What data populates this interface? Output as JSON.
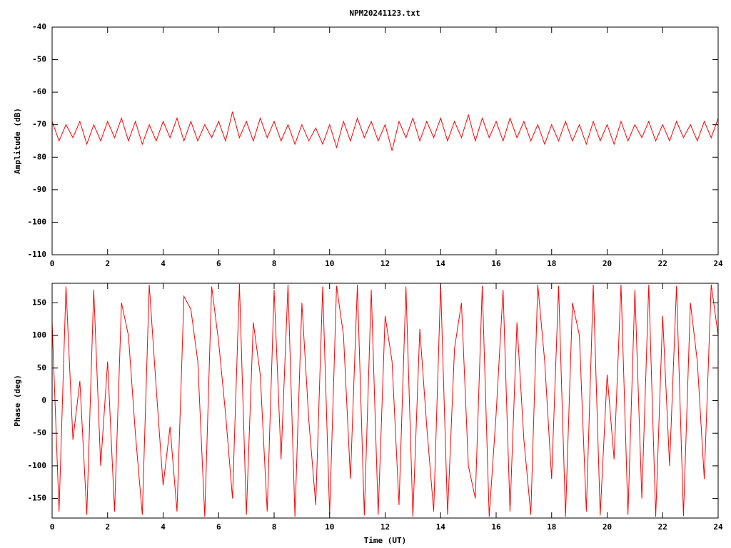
{
  "chart_data": [
    {
      "type": "line",
      "title": "NPM20241123.txt",
      "ylabel": "Amplitude (dB)",
      "x": [
        0,
        0.25,
        0.5,
        0.75,
        1,
        1.25,
        1.5,
        1.75,
        2,
        2.25,
        2.5,
        2.75,
        3,
        3.25,
        3.5,
        3.75,
        4,
        4.25,
        4.5,
        4.75,
        5,
        5.25,
        5.5,
        5.75,
        6,
        6.25,
        6.5,
        6.75,
        7,
        7.25,
        7.5,
        7.75,
        8,
        8.25,
        8.5,
        8.75,
        9,
        9.25,
        9.5,
        9.75,
        10,
        10.25,
        10.5,
        10.75,
        11,
        11.25,
        11.5,
        11.75,
        12,
        12.25,
        12.5,
        12.75,
        13,
        13.25,
        13.5,
        13.75,
        14,
        14.25,
        14.5,
        14.75,
        15,
        15.25,
        15.5,
        15.75,
        16,
        16.25,
        16.5,
        16.75,
        17,
        17.25,
        17.5,
        17.75,
        18,
        18.25,
        18.5,
        18.75,
        19,
        19.25,
        19.5,
        19.75,
        20,
        20.25,
        20.5,
        20.75,
        21,
        21.25,
        21.5,
        21.75,
        22,
        22.25,
        22.5,
        22.75,
        23,
        23.25,
        23.5,
        23.75,
        24
      ],
      "series": [
        {
          "color": "#ff0000",
          "values": [
            -69,
            -75,
            -70,
            -74,
            -69,
            -76,
            -70,
            -75,
            -69,
            -74,
            -68,
            -75,
            -69,
            -76,
            -70,
            -75,
            -69,
            -74,
            -68,
            -75,
            -69,
            -75,
            -70,
            -74,
            -69,
            -75,
            -66,
            -74,
            -69,
            -75,
            -68,
            -74,
            -69,
            -75,
            -70,
            -76,
            -70,
            -75,
            -71,
            -76,
            -70,
            -77,
            -69,
            -75,
            -68,
            -74,
            -69,
            -75,
            -70,
            -78,
            -69,
            -74,
            -68,
            -75,
            -69,
            -74,
            -68,
            -75,
            -69,
            -74,
            -67,
            -75,
            -68,
            -74,
            -69,
            -75,
            -68,
            -74,
            -69,
            -75,
            -70,
            -76,
            -70,
            -75,
            -69,
            -75,
            -70,
            -76,
            -69,
            -75,
            -70,
            -76,
            -69,
            -75,
            -70,
            -74,
            -69,
            -75,
            -70,
            -75,
            -69,
            -74,
            -70,
            -75,
            -69,
            -74,
            -68
          ]
        }
      ],
      "xlim": [
        0,
        24
      ],
      "xticks": [
        0,
        2,
        4,
        6,
        8,
        10,
        12,
        14,
        16,
        18,
        20,
        22,
        24
      ],
      "ylim": [
        -110,
        -40
      ],
      "yticks": [
        -110,
        -100,
        -90,
        -80,
        -70,
        -60,
        -50,
        -40
      ]
    },
    {
      "type": "line",
      "ylabel": "Phase (deg)",
      "xlabel": "Time (UT)",
      "x": [
        0,
        0.25,
        0.5,
        0.75,
        1,
        1.25,
        1.5,
        1.75,
        2,
        2.25,
        2.5,
        2.75,
        3,
        3.25,
        3.5,
        3.75,
        4,
        4.25,
        4.5,
        4.75,
        5,
        5.25,
        5.5,
        5.75,
        6,
        6.25,
        6.5,
        6.75,
        7,
        7.25,
        7.5,
        7.75,
        8,
        8.25,
        8.5,
        8.75,
        9,
        9.25,
        9.5,
        9.75,
        10,
        10.25,
        10.5,
        10.75,
        11,
        11.25,
        11.5,
        11.75,
        12,
        12.25,
        12.5,
        12.75,
        13,
        13.25,
        13.5,
        13.75,
        14,
        14.25,
        14.5,
        14.75,
        15,
        15.25,
        15.5,
        15.75,
        16,
        16.25,
        16.5,
        16.75,
        17,
        17.25,
        17.5,
        17.75,
        18,
        18.25,
        18.5,
        18.75,
        19,
        19.25,
        19.5,
        19.75,
        20,
        20.25,
        20.5,
        20.75,
        21,
        21.25,
        21.5,
        21.75,
        22,
        22.25,
        22.5,
        22.75,
        23,
        23.25,
        23.5,
        23.75,
        24
      ],
      "series": [
        {
          "color": "#ff0000",
          "values": [
            120,
            -170,
            175,
            -60,
            30,
            -175,
            170,
            -100,
            60,
            -170,
            150,
            100,
            -50,
            -175,
            178,
            20,
            -130,
            -40,
            -170,
            160,
            140,
            60,
            -178,
            175,
            90,
            -20,
            -150,
            179,
            -175,
            120,
            40,
            -170,
            170,
            -90,
            178,
            -178,
            150,
            -30,
            -160,
            175,
            -175,
            176,
            100,
            -120,
            178,
            -176,
            170,
            -175,
            130,
            60,
            -160,
            175,
            -178,
            110,
            -40,
            -170,
            178,
            -175,
            80,
            150,
            -100,
            -150,
            176,
            -178,
            -20,
            170,
            -170,
            120,
            -60,
            -175,
            178,
            60,
            -120,
            176,
            -178,
            150,
            100,
            -170,
            178,
            -176,
            40,
            -90,
            178,
            -175,
            170,
            -150,
            178,
            -178,
            130,
            -100,
            176,
            -177,
            150,
            60,
            -120,
            178,
            100
          ]
        }
      ],
      "xlim": [
        0,
        24
      ],
      "xticks": [
        0,
        2,
        4,
        6,
        8,
        10,
        12,
        14,
        16,
        18,
        20,
        22,
        24
      ],
      "ylim": [
        -180,
        180
      ],
      "yticks": [
        -150,
        -100,
        -50,
        0,
        50,
        100,
        150
      ]
    }
  ]
}
